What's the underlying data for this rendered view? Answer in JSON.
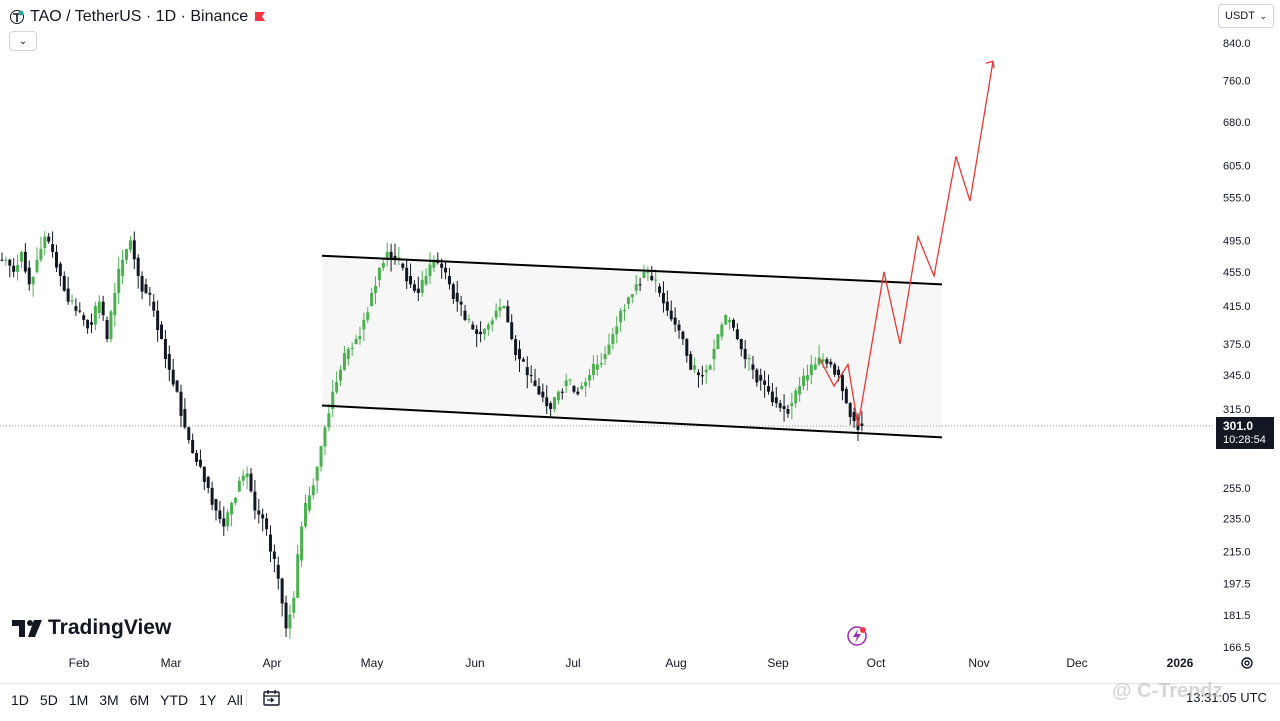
{
  "header": {
    "symbol": "TAO",
    "title": "TAO / TetherUS · 1D · Binance"
  },
  "currency": {
    "label": "USDT"
  },
  "price_tag": {
    "price": "301.0",
    "countdown": "10:28:54"
  },
  "brand": {
    "name": "TradingView"
  },
  "ranges": [
    "1D",
    "5D",
    "1M",
    "3M",
    "6M",
    "YTD",
    "1Y",
    "All"
  ],
  "clock": "13:31:05 UTC",
  "watermark": "@ C-Trendz",
  "colors": {
    "up": "#26a69a",
    "down": "#131722",
    "candle_up": "#4caf50",
    "projection": "#e53935",
    "channel": "#000000",
    "flag": "#f23645"
  },
  "icons": {
    "collapse": "chevron-down-icon",
    "currency": "chevron-down-icon",
    "calendar": "calendar-goto-icon",
    "settings": "gear-icon",
    "event": "lightning-event-icon"
  },
  "chart_data": {
    "type": "candlestick",
    "price_axis": {
      "ticks": [
        840.0,
        760.0,
        680.0,
        605.0,
        555.0,
        495.0,
        455.0,
        415.0,
        375.0,
        345.0,
        315.0,
        255.0,
        235.0,
        215.0,
        197.5,
        181.5,
        166.5
      ],
      "tick_labels": [
        "840.0",
        "760.0",
        "680.0",
        "605.0",
        "555.0",
        "495.0",
        "455.0",
        "415.0",
        "375.0",
        "345.0",
        "315.0",
        "255.0",
        "235.0",
        "215.0",
        "197.5",
        "181.5",
        "166.5"
      ],
      "scale": "log"
    },
    "time_axis": {
      "labels": [
        "Feb",
        "Mar",
        "Apr",
        "May",
        "Jun",
        "Jul",
        "Aug",
        "Sep",
        "Oct",
        "Nov",
        "Dec",
        "2026"
      ]
    },
    "last_price": 301.0,
    "close_series": [
      470,
      455,
      480,
      440,
      470,
      500,
      480,
      450,
      420,
      410,
      400,
      395,
      420,
      380,
      430,
      470,
      495,
      450,
      430,
      410,
      380,
      350,
      330,
      300,
      280,
      270,
      255,
      240,
      230,
      245,
      260,
      265,
      240,
      235,
      215,
      200,
      175,
      190,
      230,
      250,
      270,
      300,
      330,
      350,
      370,
      380,
      400,
      430,
      460,
      480,
      470,
      460,
      440,
      430,
      450,
      470,
      460,
      440,
      420,
      400,
      390,
      385,
      395,
      410,
      415,
      380,
      360,
      345,
      335,
      325,
      315,
      330,
      340,
      330,
      335,
      345,
      355,
      365,
      385,
      410,
      425,
      440,
      455,
      445,
      430,
      410,
      395,
      380,
      350,
      345,
      350,
      370,
      395,
      400,
      380,
      360,
      350,
      340,
      330,
      320,
      315,
      320,
      335,
      345,
      355,
      360,
      355,
      345,
      320,
      305,
      301
    ],
    "channel": {
      "upper": {
        "start": {
          "month": "mid Apr",
          "price": 475
        },
        "end": {
          "month": "mid Oct",
          "price": 440
        }
      },
      "lower": {
        "start": {
          "month": "mid Apr",
          "price": 318
        },
        "end": {
          "month": "mid Oct",
          "price": 292
        }
      }
    },
    "projection_path": [
      {
        "month": "late Sep",
        "price": 360
      },
      {
        "month": "late Sep",
        "price": 335
      },
      {
        "month": "late Sep",
        "price": 355
      },
      {
        "month": "late Sep",
        "price": 301
      },
      {
        "month": "early Oct",
        "price": 455
      },
      {
        "month": "early Oct",
        "price": 375
      },
      {
        "month": "mid Oct",
        "price": 500
      },
      {
        "month": "mid Oct",
        "price": 450
      },
      {
        "month": "late Oct",
        "price": 620
      },
      {
        "month": "late Oct",
        "price": 550
      },
      {
        "month": "early Nov",
        "price": 800
      }
    ]
  }
}
